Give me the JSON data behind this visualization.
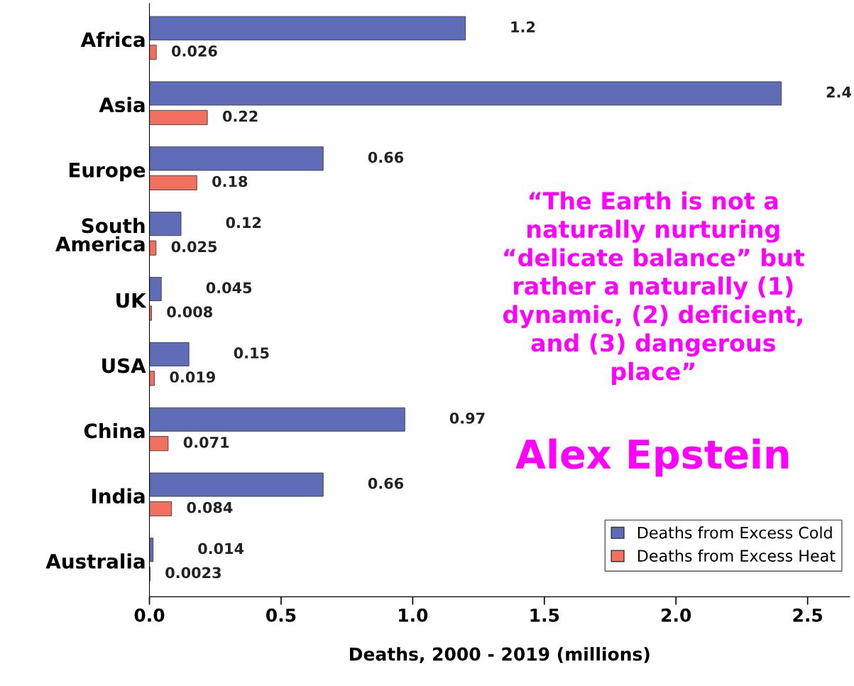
{
  "chart_data": {
    "type": "bar",
    "orientation": "horizontal",
    "xlabel": "Deaths, 2000 - 2019 (millions)",
    "categories": [
      "Africa",
      "Asia",
      "Europe",
      "South\nAmerica",
      "UK",
      "USA",
      "China",
      "India",
      "Australia"
    ],
    "series": [
      {
        "name": "Deaths from Excess Cold",
        "color": "#5f6cb8",
        "values": [
          1.2,
          2.4,
          0.66,
          0.12,
          0.045,
          0.15,
          0.97,
          0.66,
          0.014
        ]
      },
      {
        "name": "Deaths from Excess Heat",
        "color": "#f2705f",
        "values": [
          0.026,
          0.22,
          0.18,
          0.025,
          0.008,
          0.019,
          0.071,
          0.084,
          0.0023
        ]
      }
    ],
    "data_labels": true,
    "xlim": [
      0,
      2.66
    ],
    "xticks": [
      {
        "value": 0,
        "label": "0.0"
      },
      {
        "value": 0.5,
        "label": "0.5"
      },
      {
        "value": 1,
        "label": "1.0"
      },
      {
        "value": 1.5,
        "label": "1.5"
      },
      {
        "value": 2,
        "label": "2.0"
      },
      {
        "value": 2.5,
        "label": "2.5"
      }
    ],
    "legend": "bottom right",
    "grid": false,
    "annotations": [
      "“The Earth is not a\nnaturally nurturing\n“delicate balance” but\nrather a naturally (1)\ndynamic, (2) deficient,\nand (3) dangerous\nplace”",
      "Alex Epstein"
    ]
  }
}
